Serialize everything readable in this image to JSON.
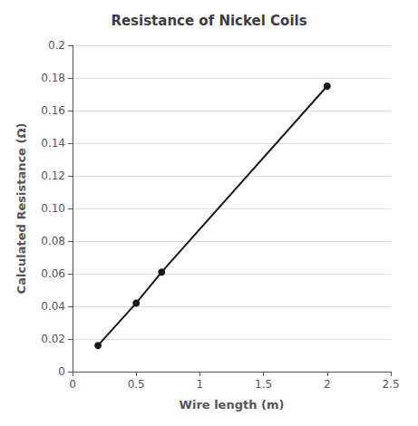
{
  "chart_data": {
    "type": "line",
    "title": "Resistance of Nickel Coils",
    "xlabel": "Wire length (m)",
    "ylabel": "Calculated Resistance (Ω)",
    "x": [
      0.2,
      0.5,
      0.7,
      2.0
    ],
    "values": [
      0.016,
      0.042,
      0.061,
      0.175
    ],
    "color": "#1a1a1a",
    "marker": "circle",
    "xlim": [
      0,
      2.5
    ],
    "xticks": [
      0,
      0.5,
      1,
      1.5,
      2,
      2.5
    ],
    "ylim": [
      0,
      0.2
    ],
    "yticks": [
      0,
      0.02,
      0.04,
      0.06,
      0.08,
      {
        "value": 0.1,
        "label": "0.10"
      },
      0.12,
      0.14,
      0.16,
      0.18,
      0.2
    ],
    "grid": true
  }
}
